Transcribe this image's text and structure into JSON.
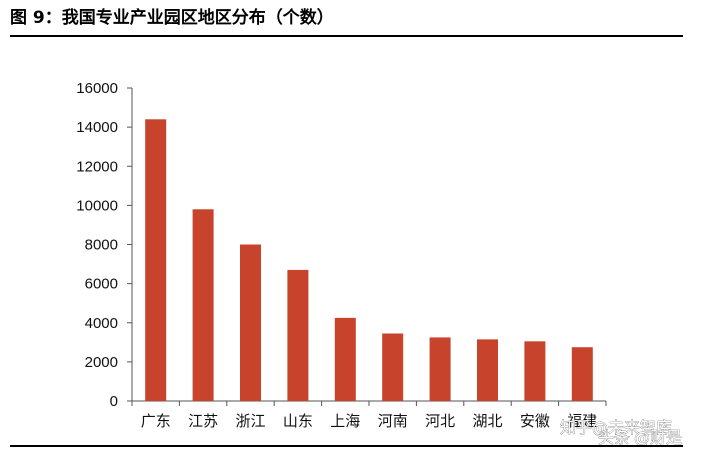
{
  "title": "图 9：我国专业产业园区地区分布（个数）",
  "watermark": {
    "prefix": "知乎",
    "handle": "@未来智库",
    "source": "头条",
    "account": "@财是"
  },
  "colors": {
    "bar": "#C8432B",
    "axis": "#555555"
  },
  "chart_data": {
    "type": "bar",
    "title": "图 9：我国专业产业园区地区分布（个数）",
    "xlabel": "",
    "ylabel": "",
    "categories": [
      "广东",
      "江苏",
      "浙江",
      "山东",
      "上海",
      "河南",
      "河北",
      "湖北",
      "安徽",
      "福建"
    ],
    "values": [
      14400,
      9800,
      8000,
      6700,
      4250,
      3450,
      3250,
      3150,
      3050,
      2750
    ],
    "ylim": [
      0,
      16000
    ],
    "yticks": [
      "0",
      "2000",
      "4000",
      "6000",
      "8000",
      "10000",
      "12000",
      "14000",
      "16000"
    ],
    "grid": false,
    "legend": "none"
  }
}
